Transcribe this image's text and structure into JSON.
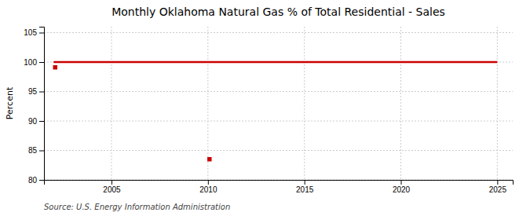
{
  "chart_data": {
    "type": "line",
    "title": "Monthly Oklahoma Natural Gas % of Total Residential - Sales",
    "ylabel": "Percent",
    "source": "Source: U.S. Energy Information Administration",
    "series": [
      {
        "type": "line",
        "color": "#CC0000",
        "x": [
          2002.0,
          2025.0
        ],
        "values": [
          100,
          100
        ]
      },
      {
        "type": "scatter",
        "marker": "square",
        "color": "#CC0000",
        "x": [
          2002.08
        ],
        "values": [
          99.1
        ]
      },
      {
        "type": "scatter",
        "marker": "square",
        "color": "#CC0000",
        "x": [
          2010.08
        ],
        "values": [
          83.5
        ]
      }
    ],
    "xlim": [
      2001.5,
      2025.8
    ],
    "ylim": [
      80,
      106
    ],
    "xticks": [
      2005,
      2010,
      2015,
      2020,
      2025
    ],
    "yticks": [
      80,
      85,
      90,
      95,
      100,
      105
    ],
    "grid": true
  }
}
